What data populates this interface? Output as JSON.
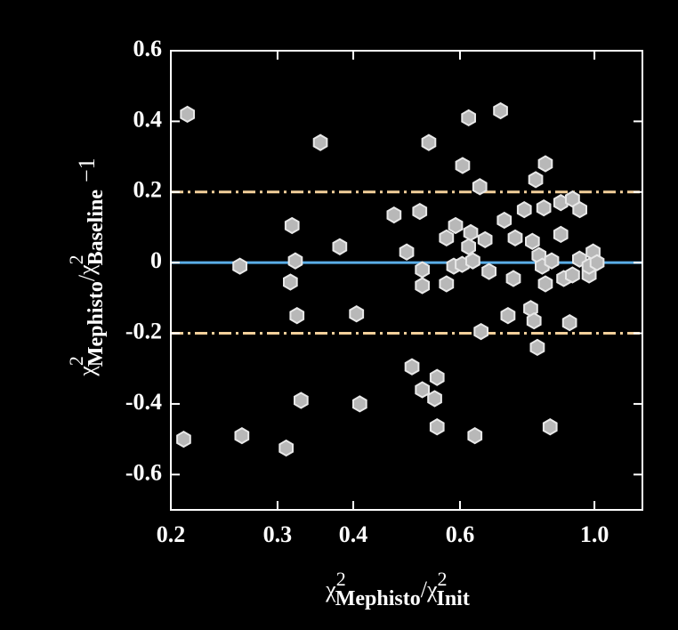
{
  "chart_data": {
    "type": "scatter",
    "xlabel": [
      "χ",
      "2",
      "Mephisto",
      "/",
      "χ",
      "2",
      "Init"
    ],
    "ylabel": [
      "χ",
      "2",
      "Mephisto",
      "/",
      "χ",
      "2",
      "Baseline",
      "−1"
    ],
    "xscale": "log",
    "xlim": [
      0.2,
      1.2
    ],
    "xticks": [
      0.2,
      0.3,
      0.4,
      0.6,
      {
        "value": 1,
        "label": "1.0"
      }
    ],
    "ylim": [
      -0.7,
      0.6
    ],
    "yticks": [
      -0.6,
      -0.4,
      -0.2,
      0,
      0.2,
      0.4,
      0.6
    ],
    "color": "#b8b8b8",
    "hlines": [
      {
        "value": 0,
        "color": "#5aaee8",
        "style": "solid"
      },
      {
        "value": 0.2,
        "color": "#f2cf9a",
        "style": "dashdot"
      },
      {
        "value": -0.2,
        "color": "#f2cf9a",
        "style": "dashdot"
      }
    ],
    "x": [
      0.213,
      0.21,
      0.26,
      0.262,
      0.31,
      0.317,
      0.315,
      0.321,
      0.323,
      0.328,
      0.353,
      0.38,
      0.405,
      0.41,
      0.467,
      0.49,
      0.5,
      0.515,
      0.52,
      0.52,
      0.52,
      0.533,
      0.55,
      0.545,
      0.55,
      0.57,
      0.57,
      0.586,
      0.59,
      0.606,
      0.605,
      0.62,
      0.62,
      0.625,
      0.63,
      0.635,
      0.647,
      0.65,
      0.66,
      0.67,
      0.7,
      0.71,
      0.72,
      0.735,
      0.74,
      0.766,
      0.79,
      0.785,
      0.795,
      0.8,
      0.805,
      0.81,
      0.82,
      0.83,
      0.825,
      0.83,
      0.845,
      0.85,
      0.88,
      0.88,
      0.89,
      0.91,
      0.92,
      0.92,
      0.946,
      0.945,
      0.98,
      0.98,
      0.995,
      1.01
    ],
    "values": [
      0.42,
      -0.5,
      -0.01,
      -0.49,
      -0.525,
      0.105,
      -0.055,
      0.005,
      -0.15,
      -0.39,
      0.34,
      0.045,
      -0.145,
      -0.4,
      0.135,
      0.03,
      -0.295,
      0.145,
      -0.36,
      -0.02,
      -0.065,
      0.34,
      -0.325,
      -0.385,
      -0.465,
      0.07,
      -0.06,
      -0.01,
      0.105,
      0.275,
      -0.005,
      0.41,
      0.045,
      0.085,
      0.005,
      -0.49,
      0.215,
      -0.195,
      0.065,
      -0.025,
      0.43,
      0.12,
      -0.15,
      -0.045,
      0.07,
      0.15,
      0.06,
      -0.13,
      -0.165,
      0.235,
      -0.24,
      0.02,
      -0.01,
      0.28,
      0.155,
      -0.06,
      -0.465,
      0.005,
      0.08,
      0.17,
      -0.045,
      -0.17,
      0.18,
      -0.035,
      0.15,
      0.01,
      -0.035,
      -0.01,
      0.03,
      0.0
    ]
  }
}
